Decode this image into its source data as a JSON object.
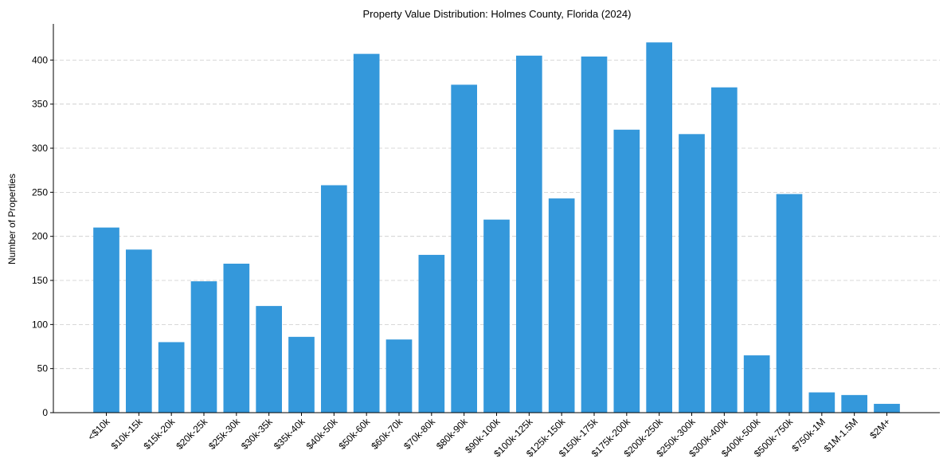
{
  "chart_data": {
    "type": "bar",
    "title": "Property Value Distribution: Holmes County, Florida (2024)",
    "xlabel": "",
    "ylabel": "Number of Properties",
    "categories": [
      "<$10k",
      "$10k-15k",
      "$15k-20k",
      "$20k-25k",
      "$25k-30k",
      "$30k-35k",
      "$35k-40k",
      "$40k-50k",
      "$50k-60k",
      "$60k-70k",
      "$70k-80k",
      "$80k-90k",
      "$90k-100k",
      "$100k-125k",
      "$125k-150k",
      "$150k-175k",
      "$175k-200k",
      "$200k-250k",
      "$250k-300k",
      "$300k-400k",
      "$400k-500k",
      "$500k-750k",
      "$750k-1M",
      "$1M-1.5M",
      "$2M+"
    ],
    "values": [
      210,
      185,
      80,
      149,
      169,
      121,
      86,
      258,
      407,
      83,
      179,
      372,
      219,
      405,
      243,
      404,
      321,
      420,
      316,
      369,
      65,
      248,
      23,
      20,
      10
    ],
    "ylim": [
      0,
      441
    ],
    "yticks": [
      0,
      50,
      100,
      150,
      200,
      250,
      300,
      350,
      400
    ],
    "grid": "horizontal-dashed",
    "bar_color": "#3498db",
    "grid_color": "#cccccc"
  }
}
